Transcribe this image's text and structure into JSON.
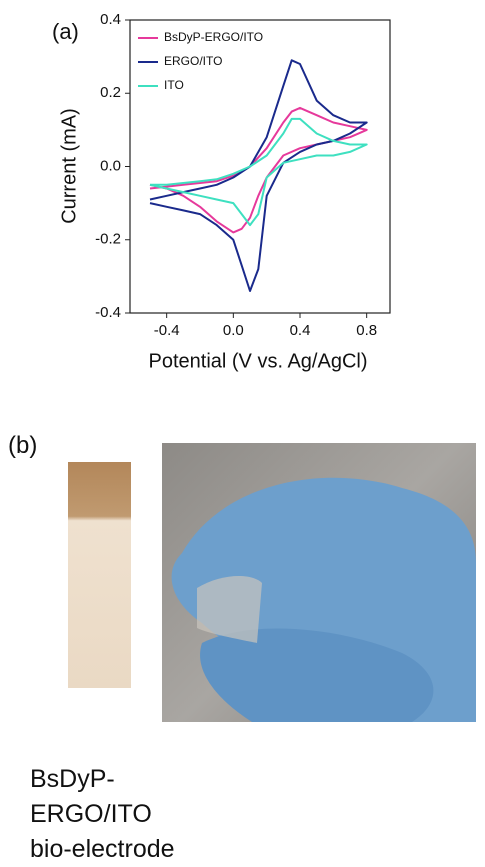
{
  "panels": [
    "(a)",
    "(b)"
  ],
  "caption": [
    "BsDyP-",
    "ERGO/ITO",
    "bio-electrode"
  ],
  "chart_data": {
    "type": "line",
    "x_label": "Potential (V vs. Ag/AgCl)",
    "y_label": "Current (mA)",
    "x": [
      -0.5,
      -0.4,
      -0.3,
      -0.2,
      -0.1,
      0,
      0.1,
      0.2,
      0.3,
      0.35,
      0.4,
      0.5,
      0.6,
      0.7,
      0.8,
      0.7,
      0.6,
      0.5,
      0.4,
      0.3,
      0.2,
      0.15,
      0.1,
      0.05,
      0,
      -0.1,
      -0.2,
      -0.3,
      -0.4,
      -0.5
    ],
    "series": [
      {
        "name": "BsDyP-ERGO/ITO",
        "color": "#e6399b",
        "values": [
          -0.06,
          -0.055,
          -0.05,
          -0.045,
          -0.04,
          -0.025,
          0.0,
          0.05,
          0.12,
          0.15,
          0.16,
          0.14,
          0.12,
          0.11,
          0.1,
          0.08,
          0.07,
          0.06,
          0.05,
          0.03,
          -0.03,
          -0.08,
          -0.14,
          -0.17,
          -0.18,
          -0.15,
          -0.11,
          -0.08,
          -0.06,
          -0.05
        ]
      },
      {
        "name": "ERGO/ITO",
        "color": "#1a2a8c",
        "values": [
          -0.09,
          -0.08,
          -0.07,
          -0.06,
          -0.05,
          -0.03,
          0.0,
          0.08,
          0.22,
          0.29,
          0.28,
          0.18,
          0.14,
          0.12,
          0.12,
          0.09,
          0.07,
          0.06,
          0.04,
          0.01,
          -0.08,
          -0.28,
          -0.34,
          -0.27,
          -0.2,
          -0.16,
          -0.13,
          -0.12,
          -0.11,
          -0.1
        ]
      },
      {
        "name": "ITO",
        "color": "#3ee0c0",
        "values": [
          -0.05,
          -0.05,
          -0.045,
          -0.04,
          -0.035,
          -0.02,
          0.0,
          0.03,
          0.09,
          0.13,
          0.13,
          0.09,
          0.07,
          0.06,
          0.06,
          0.04,
          0.03,
          0.03,
          0.02,
          0.01,
          -0.03,
          -0.13,
          -0.16,
          -0.13,
          -0.1,
          -0.09,
          -0.08,
          -0.07,
          -0.06,
          -0.05
        ]
      }
    ],
    "xlim": [
      -0.62,
      0.94
    ],
    "ylim": [
      -0.4,
      0.4
    ],
    "xticks": [
      -0.4,
      {
        "value": 0,
        "label": "0.0"
      },
      0.4,
      0.8
    ],
    "yticks": [
      -0.4,
      -0.2,
      {
        "value": 0,
        "label": "0.0"
      },
      0.2,
      0.4
    ],
    "legend": "upper-left"
  }
}
